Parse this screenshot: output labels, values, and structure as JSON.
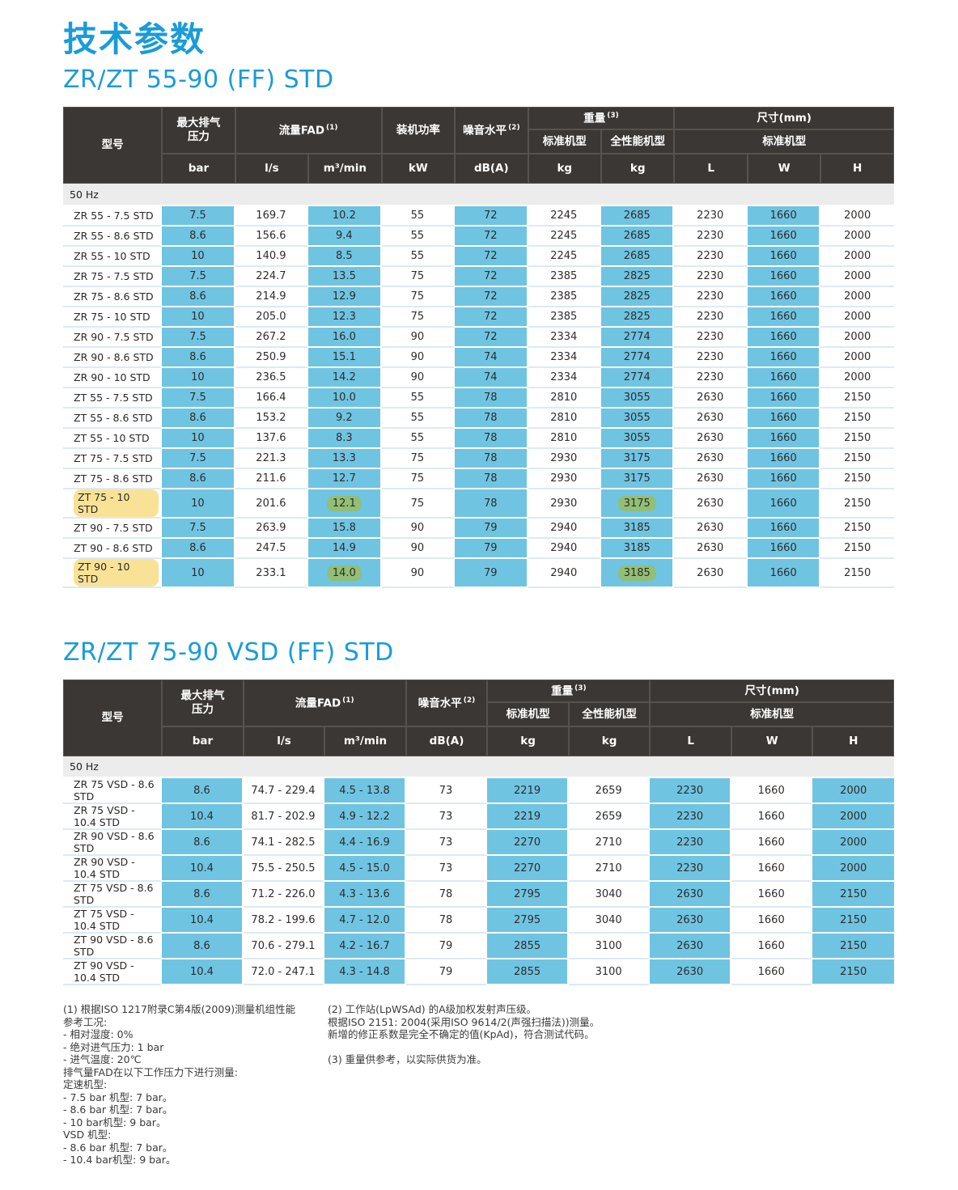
{
  "page": {
    "title": "技术参数",
    "colors": {
      "accent_blue": "#199CD8",
      "header_bg": "#3B3734",
      "cell_blue": "#6FC4E2",
      "section_gray": "#ECECEC",
      "highlight_yellow": "#F9E296",
      "highlight_green": "#92BE76"
    }
  },
  "table1": {
    "subtitle": "ZR/ZT 55-90 (FF) STD",
    "section": "50 Hz",
    "headers": {
      "model": "型号",
      "pressure": "最大排气\n压力",
      "flow": "流量FAD",
      "flow_sup": "(1)",
      "power": "装机功率",
      "noise": "噪音水平",
      "noise_sup": "(2)",
      "weight": "重量",
      "weight_sup": "(3)",
      "weight_std": "标准机型",
      "weight_full": "全性能机型",
      "dims": "尺寸(mm)",
      "dims_std": "标准机型",
      "units": {
        "bar": "bar",
        "ls": "l/s",
        "m3min": "m³/min",
        "kw": "kW",
        "dba": "dB(A)",
        "kg1": "kg",
        "kg2": "kg",
        "L": "L",
        "W": "W",
        "H": "H"
      }
    },
    "rows": [
      {
        "model": "ZR 55 - 7.5 STD",
        "bar": "7.5",
        "ls": "169.7",
        "m3min": "10.2",
        "kw": "55",
        "dba": "72",
        "kg_std": "2245",
        "kg_full": "2685",
        "L": "2230",
        "W": "1660",
        "H": "2000"
      },
      {
        "model": "ZR 55 - 8.6 STD",
        "bar": "8.6",
        "ls": "156.6",
        "m3min": "9.4",
        "kw": "55",
        "dba": "72",
        "kg_std": "2245",
        "kg_full": "2685",
        "L": "2230",
        "W": "1660",
        "H": "2000"
      },
      {
        "model": "ZR 55 - 10 STD",
        "bar": "10",
        "ls": "140.9",
        "m3min": "8.5",
        "kw": "55",
        "dba": "72",
        "kg_std": "2245",
        "kg_full": "2685",
        "L": "2230",
        "W": "1660",
        "H": "2000"
      },
      {
        "model": "ZR 75 - 7.5 STD",
        "bar": "7.5",
        "ls": "224.7",
        "m3min": "13.5",
        "kw": "75",
        "dba": "72",
        "kg_std": "2385",
        "kg_full": "2825",
        "L": "2230",
        "W": "1660",
        "H": "2000"
      },
      {
        "model": "ZR 75 - 8.6 STD",
        "bar": "8.6",
        "ls": "214.9",
        "m3min": "12.9",
        "kw": "75",
        "dba": "72",
        "kg_std": "2385",
        "kg_full": "2825",
        "L": "2230",
        "W": "1660",
        "H": "2000"
      },
      {
        "model": "ZR 75 - 10 STD",
        "bar": "10",
        "ls": "205.0",
        "m3min": "12.3",
        "kw": "75",
        "dba": "72",
        "kg_std": "2385",
        "kg_full": "2825",
        "L": "2230",
        "W": "1660",
        "H": "2000"
      },
      {
        "model": "ZR 90 - 7.5 STD",
        "bar": "7.5",
        "ls": "267.2",
        "m3min": "16.0",
        "kw": "90",
        "dba": "72",
        "kg_std": "2334",
        "kg_full": "2774",
        "L": "2230",
        "W": "1660",
        "H": "2000"
      },
      {
        "model": "ZR 90 - 8.6 STD",
        "bar": "8.6",
        "ls": "250.9",
        "m3min": "15.1",
        "kw": "90",
        "dba": "74",
        "kg_std": "2334",
        "kg_full": "2774",
        "L": "2230",
        "W": "1660",
        "H": "2000"
      },
      {
        "model": "ZR 90 - 10 STD",
        "bar": "10",
        "ls": "236.5",
        "m3min": "14.2",
        "kw": "90",
        "dba": "74",
        "kg_std": "2334",
        "kg_full": "2774",
        "L": "2230",
        "W": "1660",
        "H": "2000"
      },
      {
        "model": "ZT 55 - 7.5 STD",
        "bar": "7.5",
        "ls": "166.4",
        "m3min": "10.0",
        "kw": "55",
        "dba": "78",
        "kg_std": "2810",
        "kg_full": "3055",
        "L": "2630",
        "W": "1660",
        "H": "2150"
      },
      {
        "model": "ZT 55 - 8.6 STD",
        "bar": "8.6",
        "ls": "153.2",
        "m3min": "9.2",
        "kw": "55",
        "dba": "78",
        "kg_std": "2810",
        "kg_full": "3055",
        "L": "2630",
        "W": "1660",
        "H": "2150"
      },
      {
        "model": "ZT 55 - 10 STD",
        "bar": "10",
        "ls": "137.6",
        "m3min": "8.3",
        "kw": "55",
        "dba": "78",
        "kg_std": "2810",
        "kg_full": "3055",
        "L": "2630",
        "W": "1660",
        "H": "2150"
      },
      {
        "model": "ZT 75 - 7.5 STD",
        "bar": "7.5",
        "ls": "221.3",
        "m3min": "13.3",
        "kw": "75",
        "dba": "78",
        "kg_std": "2930",
        "kg_full": "3175",
        "L": "2630",
        "W": "1660",
        "H": "2150"
      },
      {
        "model": "ZT 75 - 8.6 STD",
        "bar": "8.6",
        "ls": "211.6",
        "m3min": "12.7",
        "kw": "75",
        "dba": "78",
        "kg_std": "2930",
        "kg_full": "3175",
        "L": "2630",
        "W": "1660",
        "H": "2150"
      },
      {
        "model": "ZT 75 - 10 STD",
        "bar": "10",
        "ls": "201.6",
        "m3min": "12.1",
        "kw": "75",
        "dba": "78",
        "kg_std": "2930",
        "kg_full": "3175",
        "L": "2630",
        "W": "1660",
        "H": "2150",
        "yellow": [
          "model"
        ],
        "green": [
          "m3min",
          "kg_full"
        ]
      },
      {
        "model": "ZT 90 - 7.5 STD",
        "bar": "7.5",
        "ls": "263.9",
        "m3min": "15.8",
        "kw": "90",
        "dba": "79",
        "kg_std": "2940",
        "kg_full": "3185",
        "L": "2630",
        "W": "1660",
        "H": "2150"
      },
      {
        "model": "ZT 90 - 8.6 STD",
        "bar": "8.6",
        "ls": "247.5",
        "m3min": "14.9",
        "kw": "90",
        "dba": "79",
        "kg_std": "2940",
        "kg_full": "3185",
        "L": "2630",
        "W": "1660",
        "H": "2150"
      },
      {
        "model": "ZT 90 - 10 STD",
        "bar": "10",
        "ls": "233.1",
        "m3min": "14.0",
        "kw": "90",
        "dba": "79",
        "kg_std": "2940",
        "kg_full": "3185",
        "L": "2630",
        "W": "1660",
        "H": "2150",
        "yellow": [
          "model"
        ],
        "green": [
          "m3min",
          "kg_full"
        ]
      }
    ]
  },
  "table2": {
    "subtitle": "ZR/ZT 75-90 VSD (FF) STD",
    "section": "50 Hz",
    "headers": {
      "model": "型号",
      "pressure": "最大排气\n压力",
      "flow": "流量FAD",
      "flow_sup": "(1)",
      "noise": "噪音水平",
      "noise_sup": "(2)",
      "weight": "重量",
      "weight_sup": "(3)",
      "weight_std": "标准机型",
      "weight_full": "全性能机型",
      "dims": "尺寸(mm)",
      "dims_std": "标准机型",
      "units": {
        "bar": "bar",
        "ls": "l/s",
        "m3min": "m³/min",
        "dba": "dB(A)",
        "kg1": "kg",
        "kg2": "kg",
        "L": "L",
        "W": "W",
        "H": "H"
      }
    },
    "rows": [
      {
        "model": "ZR 75 VSD - 8.6 STD",
        "bar": "8.6",
        "ls": "74.7 - 229.4",
        "m3min": "4.5 - 13.8",
        "dba": "73",
        "kg_std": "2219",
        "kg_full": "2659",
        "L": "2230",
        "W": "1660",
        "H": "2000"
      },
      {
        "model": "ZR 75 VSD - 10.4 STD",
        "bar": "10.4",
        "ls": "81.7 - 202.9",
        "m3min": "4.9 - 12.2",
        "dba": "73",
        "kg_std": "2219",
        "kg_full": "2659",
        "L": "2230",
        "W": "1660",
        "H": "2000"
      },
      {
        "model": "ZR 90 VSD - 8.6 STD",
        "bar": "8.6",
        "ls": "74.1 - 282.5",
        "m3min": "4.4 - 16.9",
        "dba": "73",
        "kg_std": "2270",
        "kg_full": "2710",
        "L": "2230",
        "W": "1660",
        "H": "2000"
      },
      {
        "model": "ZR 90 VSD - 10.4 STD",
        "bar": "10.4",
        "ls": "75.5 - 250.5",
        "m3min": "4.5 - 15.0",
        "dba": "73",
        "kg_std": "2270",
        "kg_full": "2710",
        "L": "2230",
        "W": "1660",
        "H": "2000"
      },
      {
        "model": "ZT 75 VSD - 8.6 STD",
        "bar": "8.6",
        "ls": "71.2 - 226.0",
        "m3min": "4.3 - 13.6",
        "dba": "78",
        "kg_std": "2795",
        "kg_full": "3040",
        "L": "2630",
        "W": "1660",
        "H": "2150"
      },
      {
        "model": "ZT 75 VSD - 10.4 STD",
        "bar": "10.4",
        "ls": "78.2 - 199.6",
        "m3min": "4.7 - 12.0",
        "dba": "78",
        "kg_std": "2795",
        "kg_full": "3040",
        "L": "2630",
        "W": "1660",
        "H": "2150"
      },
      {
        "model": "ZT 90 VSD - 8.6 STD",
        "bar": "8.6",
        "ls": "70.6 - 279.1",
        "m3min": "4.2 - 16.7",
        "dba": "79",
        "kg_std": "2855",
        "kg_full": "3100",
        "L": "2630",
        "W": "1660",
        "H": "2150"
      },
      {
        "model": "ZT 90 VSD - 10.4 STD",
        "bar": "10.4",
        "ls": "72.0 - 247.1",
        "m3min": "4.3 - 14.8",
        "dba": "79",
        "kg_std": "2855",
        "kg_full": "3100",
        "L": "2630",
        "W": "1660",
        "H": "2150"
      }
    ]
  },
  "footnotes": {
    "col1": [
      "(1) 根据ISO 1217附录C第4版(2009)测量机组性能",
      "参考工况:",
      "- 相对湿度: 0%",
      "- 绝对进气压力: 1 bar",
      "- 进气温度: 20℃",
      "排气量FAD在以下工作压力下进行测量:",
      "定速机型:",
      "- 7.5 bar 机型: 7 bar。",
      "- 8.6 bar 机型: 7 bar。",
      "- 10 bar机型: 9 bar。",
      "VSD 机型:",
      "- 8.6 bar 机型: 7 bar。",
      "- 10.4 bar机型: 9 bar。"
    ],
    "col2": [
      "(2) 工作站(LpWSAd) 的A级加权发射声压级。",
      "根据ISO 2151: 2004(采用ISO 9614/2(声强扫描法))测量。",
      "新增的修正系数是完全不确定的值(KpAd)，符合测试代码。",
      "",
      "(3) 重量供参考，以实际供货为准。"
    ]
  }
}
